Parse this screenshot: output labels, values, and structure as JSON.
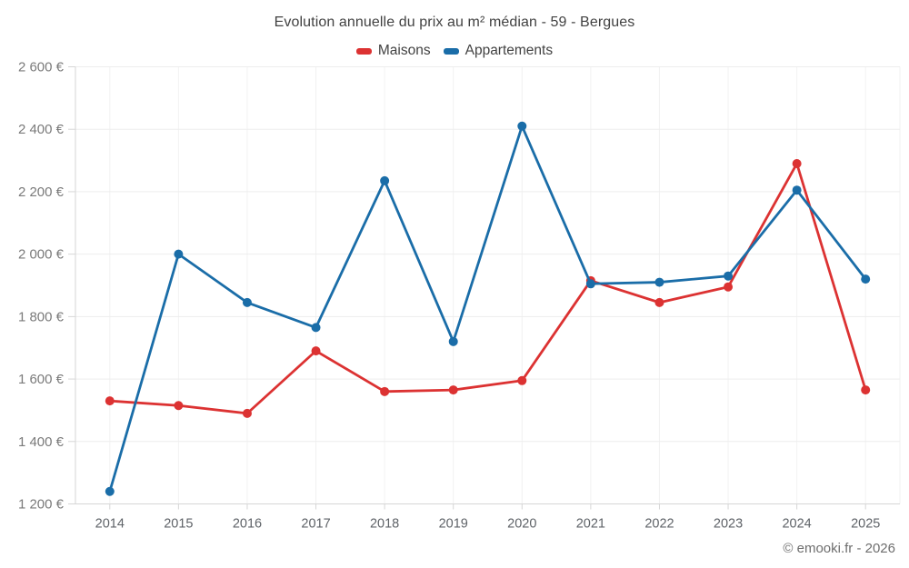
{
  "page": {
    "title": "Evolution annuelle du prix au m² médian - 59 - Bergues",
    "copyright": "© emooki.fr - 2026"
  },
  "chart_data": {
    "type": "line",
    "title": "Evolution annuelle du prix au m² médian - 59 - Bergues",
    "categories": [
      "2014",
      "2015",
      "2016",
      "2017",
      "2018",
      "2019",
      "2020",
      "2021",
      "2022",
      "2023",
      "2024",
      "2025"
    ],
    "series": [
      {
        "name": "Maisons",
        "color": "#dc3232",
        "values": [
          1530,
          1515,
          1490,
          1690,
          1560,
          1565,
          1595,
          1915,
          1845,
          1895,
          2290,
          1565
        ]
      },
      {
        "name": "Appartements",
        "color": "#1a6da8",
        "values": [
          1240,
          2000,
          1845,
          1765,
          2235,
          1720,
          2410,
          1905,
          1910,
          1930,
          2205,
          1920
        ]
      }
    ],
    "xlabel": "",
    "ylabel": "",
    "ylim": [
      1200,
      2600
    ],
    "ytick_step": 200,
    "ytick_suffix": " €",
    "grid": true,
    "legend_position": "top",
    "marker_radius": 5,
    "line_width": 2.8
  }
}
